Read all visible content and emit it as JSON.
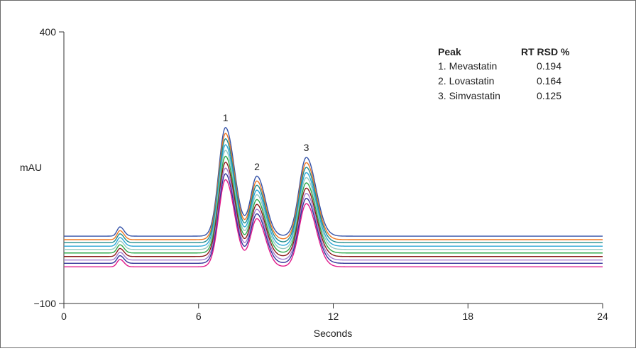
{
  "chart_data": {
    "type": "line",
    "xlabel": "Seconds",
    "ylabel": "mAU",
    "xlim": [
      0,
      24
    ],
    "ylim": [
      -100,
      400
    ],
    "x_ticks": [
      "0",
      "6",
      "12",
      "18",
      "24"
    ],
    "y_ticks": [
      "400",
      "−100"
    ],
    "grid": false,
    "peaks": [
      {
        "label": "1",
        "x": 7.2,
        "height": 200,
        "width": 0.3
      },
      {
        "label": "2",
        "x": 8.6,
        "height": 110,
        "width": 0.28
      },
      {
        "label": "3",
        "x": 10.8,
        "height": 145,
        "width": 0.32
      }
    ],
    "solvent_peak": {
      "x": 2.5,
      "height": 17,
      "width": 0.13
    },
    "series": [
      {
        "color": "#3452a8",
        "baseline": 24,
        "scale": 1.0
      },
      {
        "color": "#ee7722",
        "baseline": 17.5,
        "scale": 1.0
      },
      {
        "color": "#1f8c8c",
        "baseline": 12,
        "scale": 1.0
      },
      {
        "color": "#29a6d6",
        "baseline": 5.5,
        "scale": 1.0
      },
      {
        "color": "#93c9c0",
        "baseline": -0.5,
        "scale": 1.0
      },
      {
        "color": "#2ea84a",
        "baseline": -7,
        "scale": 1.0
      },
      {
        "color": "#8b1a1a",
        "baseline": -13.5,
        "scale": 1.0
      },
      {
        "color": "#a37ad0",
        "baseline": -20,
        "scale": 1.0
      },
      {
        "color": "#333399",
        "baseline": -26,
        "scale": 1.0
      },
      {
        "color": "#e0188a",
        "baseline": -32.5,
        "scale": 1.0
      }
    ],
    "table": {
      "headers": [
        "Peak",
        "RT RSD %"
      ],
      "rows": [
        [
          "1. Mevastatin",
          "0.194"
        ],
        [
          "2. Lovastatin",
          "0.164"
        ],
        [
          "3. Simvastatin",
          "0.125"
        ]
      ]
    }
  }
}
